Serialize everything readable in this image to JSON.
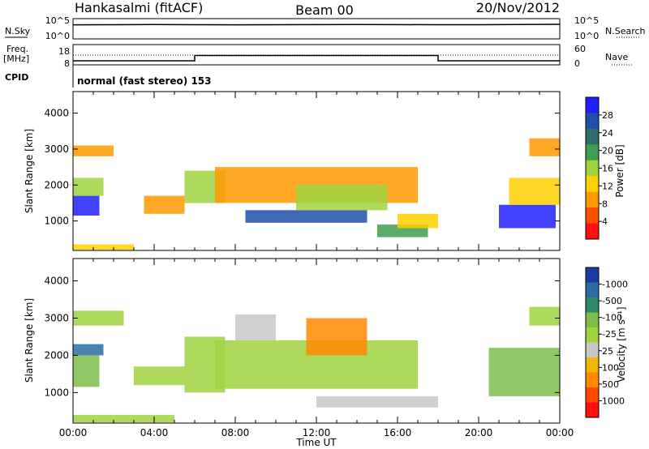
{
  "header": {
    "title": "Hankasalmi (fitACF)",
    "beam": "Beam 00",
    "date": "20/Nov/2012"
  },
  "noise_panel": {
    "left_label": "N.Sky",
    "right_label": "N.Search",
    "tick_high": "10^5",
    "tick_low": "10^0"
  },
  "freq_panel": {
    "label_line1": "Freq.",
    "label_line2": "[MHz]",
    "tick_high": "18",
    "tick_low": "8",
    "right_label": "Nave",
    "right_tick_high": "60",
    "right_tick_low": "0"
  },
  "cpid": {
    "label": "CPID",
    "value": "normal (fast stereo) 153"
  },
  "axes": {
    "xlabel": "Time UT",
    "ylabel": "Slant Range [km]",
    "x_ticks": [
      "00:00",
      "04:00",
      "08:00",
      "12:00",
      "16:00",
      "20:00",
      "00:00"
    ],
    "y_ticks": [
      "1000",
      "2000",
      "3000",
      "4000"
    ]
  },
  "colorbars": {
    "power": {
      "label": "Power [dB]",
      "ticks": [
        "4",
        "8",
        "12",
        "16",
        "20",
        "24",
        "28"
      ],
      "colors": [
        "#2020ff",
        "#1f4fa8",
        "#2f6e6a",
        "#3f9f4f",
        "#9fd43f",
        "#ffd000",
        "#ff9a00",
        "#ff5000",
        "#ff1010"
      ]
    },
    "velocity": {
      "label": "Velocity [m s⁻¹]",
      "ticks": [
        "1000",
        "500",
        "100",
        "25",
        "-25",
        "-100",
        "-500",
        "-1000"
      ],
      "colors": [
        "#1c3aa6",
        "#2a6ea0",
        "#2f8a6c",
        "#7dbe4a",
        "#9fd43f",
        "#c8c8c8",
        "#f2b500",
        "#ff8a00",
        "#ff4a00",
        "#ff1010"
      ]
    }
  },
  "chart_data": [
    {
      "type": "line",
      "title": "N.Sky",
      "x_range_hours": [
        0,
        24
      ],
      "yscale": "log",
      "ylim": [
        1,
        100000
      ],
      "series": [
        {
          "name": "N.Sky",
          "x": [
            0,
            2,
            4,
            6,
            8,
            10,
            12,
            14,
            16,
            18,
            20,
            22,
            24
          ],
          "values": [
            3000,
            3200,
            3500,
            3100,
            3000,
            3200,
            3300,
            3400,
            3300,
            3100,
            3200,
            3600,
            4000
          ]
        }
      ]
    },
    {
      "type": "line",
      "title": "Freq. [MHz]",
      "x_range_hours": [
        0,
        24
      ],
      "ylim": [
        8,
        18
      ],
      "series": [
        {
          "name": "Freq.",
          "x": [
            0,
            6,
            6,
            18,
            18,
            24
          ],
          "values": [
            10,
            10,
            12.6,
            12.6,
            10,
            10
          ]
        }
      ]
    },
    {
      "type": "heatmap",
      "title": "Power [dB]",
      "xlabel": "Time UT",
      "ylabel": "Slant Range [km]",
      "x_range_hours": [
        0,
        24
      ],
      "ylim_km": [
        180,
        4600
      ],
      "clim": [
        0,
        30
      ],
      "regions": [
        {
          "t": [
            0.0,
            1.3
          ],
          "r": [
            1150,
            1700
          ],
          "value": 27
        },
        {
          "t": [
            0.0,
            1.5
          ],
          "r": [
            1700,
            2200
          ],
          "value": 14
        },
        {
          "t": [
            0.0,
            2.0
          ],
          "r": [
            2800,
            3100
          ],
          "value": 9
        },
        {
          "t": [
            0.0,
            3.0
          ],
          "r": [
            200,
            350
          ],
          "value": 12
        },
        {
          "t": [
            3.5,
            5.5
          ],
          "r": [
            1200,
            1700
          ],
          "value": 8
        },
        {
          "t": [
            5.5,
            7.5
          ],
          "r": [
            1500,
            2400
          ],
          "value": 15
        },
        {
          "t": [
            7.0,
            17.0
          ],
          "r": [
            1500,
            2500
          ],
          "value": 7
        },
        {
          "t": [
            8.5,
            14.5
          ],
          "r": [
            950,
            1300
          ],
          "value": 26
        },
        {
          "t": [
            11.0,
            15.5
          ],
          "r": [
            1300,
            2000
          ],
          "value": 16
        },
        {
          "t": [
            15.0,
            17.5
          ],
          "r": [
            550,
            900
          ],
          "value": 18
        },
        {
          "t": [
            16.0,
            18.0
          ],
          "r": [
            800,
            1200
          ],
          "value": 10
        },
        {
          "t": [
            21.0,
            23.8
          ],
          "r": [
            800,
            1450
          ],
          "value": 28
        },
        {
          "t": [
            21.5,
            24.0
          ],
          "r": [
            1450,
            2200
          ],
          "value": 12
        },
        {
          "t": [
            22.5,
            24.0
          ],
          "r": [
            2800,
            3300
          ],
          "value": 8
        }
      ]
    },
    {
      "type": "heatmap",
      "title": "Velocity [m s-1]",
      "xlabel": "Time UT",
      "ylabel": "Slant Range [km]",
      "x_range_hours": [
        0,
        24
      ],
      "ylim_km": [
        180,
        4600
      ],
      "clim": [
        -1000,
        1000
      ],
      "regions": [
        {
          "t": [
            0.0,
            1.3
          ],
          "r": [
            1150,
            2000
          ],
          "value": 200
        },
        {
          "t": [
            0.0,
            1.5
          ],
          "r": [
            2000,
            2300
          ],
          "value": 600
        },
        {
          "t": [
            0.0,
            2.5
          ],
          "r": [
            2800,
            3200
          ],
          "value": 0
        },
        {
          "t": [
            0.0,
            5.0
          ],
          "r": [
            200,
            400
          ],
          "value": 60
        },
        {
          "t": [
            3.0,
            5.5
          ],
          "r": [
            1200,
            1700
          ],
          "value": 150
        },
        {
          "t": [
            5.5,
            7.5
          ],
          "r": [
            1000,
            2500
          ],
          "value": 80
        },
        {
          "t": [
            7.0,
            17.0
          ],
          "r": [
            1100,
            2400
          ],
          "value": 0
        },
        {
          "t": [
            8.0,
            10.0
          ],
          "r": [
            2400,
            3100
          ],
          "value": -200
        },
        {
          "t": [
            11.5,
            14.5
          ],
          "r": [
            2000,
            3000
          ],
          "value": -600
        },
        {
          "t": [
            12.0,
            15.0
          ],
          "r": [
            600,
            900
          ],
          "value": -150
        },
        {
          "t": [
            15.0,
            18.0
          ],
          "r": [
            600,
            900
          ],
          "value": -80
        },
        {
          "t": [
            20.5,
            24.0
          ],
          "r": [
            900,
            2200
          ],
          "value": 300
        },
        {
          "t": [
            22.5,
            24.0
          ],
          "r": [
            2800,
            3300
          ],
          "value": 0
        }
      ]
    }
  ]
}
